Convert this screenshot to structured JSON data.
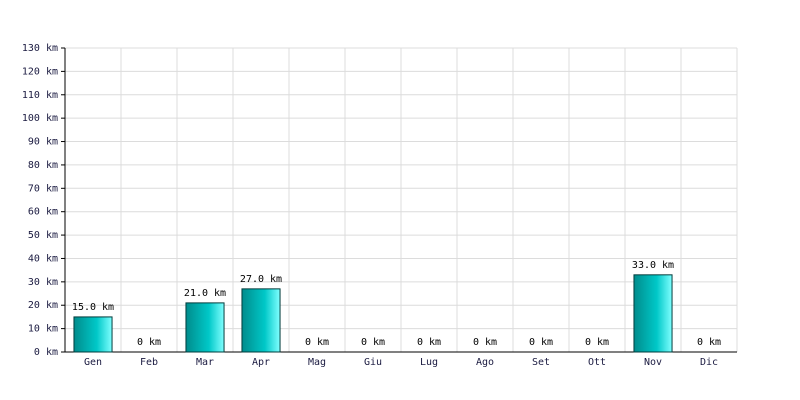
{
  "chart_data": {
    "type": "bar",
    "categories": [
      "Gen",
      "Feb",
      "Mar",
      "Apr",
      "Mag",
      "Giu",
      "Lug",
      "Ago",
      "Set",
      "Ott",
      "Nov",
      "Dic"
    ],
    "values": [
      15,
      0,
      21,
      27,
      0,
      0,
      0,
      0,
      0,
      0,
      33,
      0
    ],
    "value_labels": [
      "15.0 km",
      "0 km",
      "21.0 km",
      "27.0 km",
      "0 km",
      "0 km",
      "0 km",
      "0 km",
      "0 km",
      "0 km",
      "33.0 km",
      "0 km"
    ],
    "color": "#00c8c8",
    "ylim": [
      0,
      130
    ],
    "yticks": [
      {
        "value": 0,
        "label": "0 km"
      },
      {
        "value": 10,
        "label": "10 km"
      },
      {
        "value": 20,
        "label": "20 km"
      },
      {
        "value": 30,
        "label": "30 km"
      },
      {
        "value": 40,
        "label": "40 km"
      },
      {
        "value": 50,
        "label": "50 km"
      },
      {
        "value": 60,
        "label": "60 km"
      },
      {
        "value": 70,
        "label": "70 km"
      },
      {
        "value": 80,
        "label": "80 km"
      },
      {
        "value": 90,
        "label": "90 km"
      },
      {
        "value": 100,
        "label": "100 km"
      },
      {
        "value": 110,
        "label": "110 km"
      },
      {
        "value": 120,
        "label": "120 km"
      },
      {
        "value": 130,
        "label": "130 km"
      }
    ],
    "grid": true
  }
}
